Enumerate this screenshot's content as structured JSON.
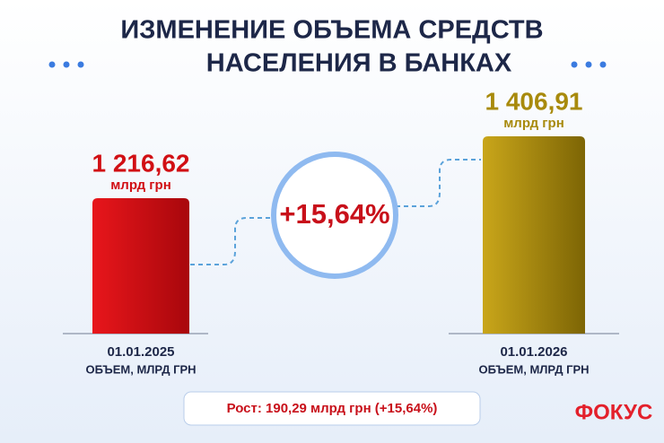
{
  "chart_data": {
    "type": "bar",
    "title": [
      "ИЗМЕНЕНИЕ ОБЪЕМА СРЕДСТВ",
      "НАСЕЛЕНИЯ В БАНКАХ"
    ],
    "categories": [
      "01.01.2025",
      "01.01.2026"
    ],
    "x_label": "ОБЪЕМ, МЛРД ГРН",
    "values": [
      1216.62,
      1406.91
    ],
    "value_labels": [
      "1 216,62",
      "1 406,91"
    ],
    "value_unit": "млрд грн",
    "colors": [
      "#d10f14",
      "#a88a0c"
    ],
    "ylim": [
      800,
      1450
    ],
    "annotation": "+15,64%",
    "footer": "Рост: 190,29 млрд грн (+15,64%)",
    "logo": "ФОКУС"
  }
}
